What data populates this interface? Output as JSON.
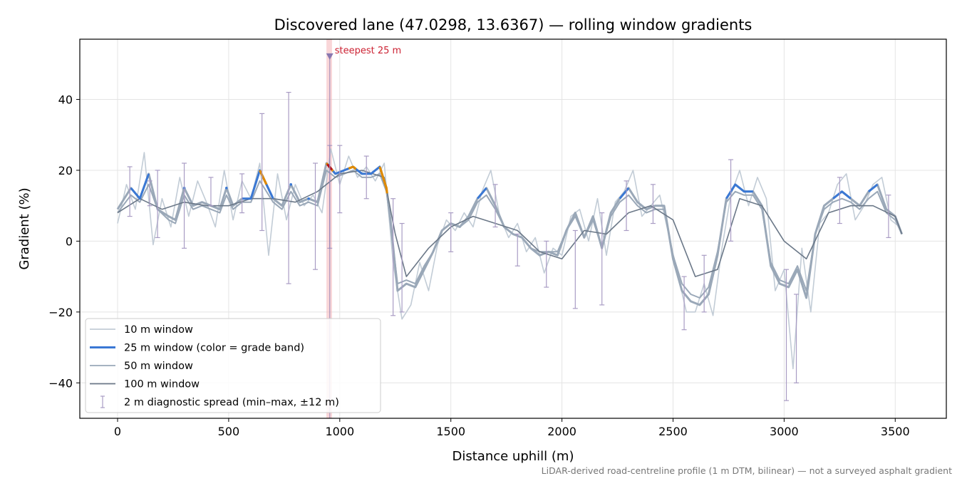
{
  "chart_data": {
    "type": "line",
    "title": "Discovered lane (47.0298, 13.6367) — rolling window gradients",
    "xlabel": "Distance uphill (m)",
    "ylabel": "Gradient (%)",
    "xlim": [
      -170,
      3730
    ],
    "ylim": [
      -50,
      57
    ],
    "x_ticks": [
      0,
      500,
      1000,
      1500,
      2000,
      2500,
      3000,
      3500
    ],
    "x_tick_labels": [
      "0",
      "500",
      "1000",
      "1500",
      "2000",
      "2500",
      "3000",
      "3500"
    ],
    "y_ticks": [
      -40,
      -20,
      0,
      20,
      40
    ],
    "y_tick_labels": [
      "−40",
      "−20",
      "0",
      "20",
      "40"
    ],
    "grid": true,
    "legend_position": "lower-left",
    "colors": {
      "w10": "#c2ccd6",
      "w25": "#3a78d4",
      "w50": "#9aa8b8",
      "w100": "#6b7888",
      "errorbar": "#a99cc4",
      "band_orange": "#e08a00",
      "band_red": "#b5121b",
      "highlight": "#f4b4b8",
      "annotation": "#cc2233",
      "marker": "#8878b0"
    },
    "steepest": {
      "x": 955,
      "span": [
        940,
        965
      ],
      "label": "steepest 25 m",
      "marker_y": 52
    },
    "orange_segments": [
      [
        640,
        670
      ],
      [
        940,
        970
      ],
      [
        1040,
        1075
      ],
      [
        1180,
        1215
      ]
    ],
    "red_segment": [
      944,
      966
    ],
    "blue_threshold": 12,
    "footnote": "LiDAR-derived road-centreline profile (1 m DTM, bilinear) — not a surveyed asphalt gradient",
    "legend": [
      {
        "key": "w10",
        "label": "10 m window"
      },
      {
        "key": "w25",
        "label": "25 m window (color = grade band)"
      },
      {
        "key": "w50",
        "label": "50 m window"
      },
      {
        "key": "w100",
        "label": "100 m window"
      },
      {
        "key": "err",
        "label": "2 m diagnostic spread (min–max, ±12 m)"
      }
    ],
    "series": [
      {
        "name": "25 m window",
        "x": [
          0,
          60,
          100,
          140,
          180,
          230,
          260,
          300,
          340,
          380,
          420,
          460,
          490,
          520,
          560,
          600,
          640,
          700,
          740,
          780,
          820,
          860,
          900,
          940,
          980,
          1020,
          1060,
          1100,
          1140,
          1180,
          1210,
          1230,
          1260,
          1300,
          1340,
          1380,
          1420,
          1460,
          1500,
          1540,
          1580,
          1620,
          1660,
          1700,
          1740,
          1780,
          1820,
          1860,
          1900,
          1940,
          1980,
          2020,
          2060,
          2100,
          2140,
          2180,
          2220,
          2260,
          2300,
          2340,
          2380,
          2420,
          2460,
          2500,
          2540,
          2580,
          2620,
          2660,
          2700,
          2740,
          2780,
          2820,
          2860,
          2900,
          2940,
          2980,
          3020,
          3060,
          3100,
          3140,
          3180,
          3220,
          3260,
          3300,
          3340,
          3380,
          3420,
          3460,
          3500,
          3530
        ],
        "y": [
          9,
          15,
          12,
          19,
          9,
          7,
          6,
          15,
          10,
          11,
          10,
          9,
          15,
          10,
          12,
          12,
          20,
          12,
          10,
          16,
          11,
          12,
          11,
          22,
          19,
          20,
          21,
          19,
          19,
          21,
          15,
          5,
          -14,
          -12,
          -13,
          -8,
          -3,
          3,
          5,
          4,
          7,
          12,
          15,
          10,
          4,
          2,
          1,
          -2,
          -4,
          -3,
          -4,
          3,
          8,
          1,
          7,
          -2,
          8,
          12,
          15,
          11,
          9,
          10,
          10,
          -5,
          -14,
          -17,
          -18,
          -15,
          -4,
          12,
          16,
          14,
          14,
          10,
          -7,
          -12,
          -13,
          -8,
          -16,
          2,
          10,
          12,
          14,
          12,
          10,
          14,
          16,
          9,
          7,
          2
        ]
      },
      {
        "name": "50 m window",
        "x": [
          0,
          60,
          100,
          140,
          180,
          230,
          260,
          300,
          340,
          380,
          420,
          460,
          490,
          520,
          560,
          600,
          640,
          700,
          740,
          780,
          820,
          860,
          900,
          940,
          980,
          1020,
          1060,
          1100,
          1140,
          1180,
          1210,
          1230,
          1260,
          1300,
          1340,
          1380,
          1420,
          1460,
          1500,
          1540,
          1580,
          1620,
          1660,
          1700,
          1740,
          1780,
          1820,
          1860,
          1900,
          1940,
          1980,
          2020,
          2060,
          2100,
          2140,
          2180,
          2220,
          2260,
          2300,
          2340,
          2380,
          2420,
          2460,
          2500,
          2540,
          2580,
          2620,
          2660,
          2700,
          2740,
          2780,
          2820,
          2860,
          2900,
          2940,
          2980,
          3020,
          3060,
          3100,
          3140,
          3180,
          3220,
          3260,
          3300,
          3340,
          3380,
          3420,
          3460,
          3500,
          3530
        ],
        "y": [
          8,
          13,
          11,
          16,
          9,
          6,
          5,
          13,
          9,
          10,
          9,
          8,
          13,
          9,
          11,
          11,
          17,
          11,
          9,
          14,
          10,
          11,
          10,
          20,
          18,
          19,
          20,
          18,
          18,
          19,
          14,
          4,
          -12,
          -11,
          -12,
          -7,
          -3,
          3,
          5,
          4,
          6,
          11,
          13,
          9,
          4,
          2,
          1,
          -2,
          -3,
          -3,
          -3,
          3,
          7,
          1,
          6,
          -2,
          7,
          11,
          13,
          10,
          8,
          9,
          9,
          -4,
          -12,
          -15,
          -16,
          -13,
          -3,
          11,
          14,
          13,
          13,
          9,
          -6,
          -11,
          -12,
          -7,
          -14,
          2,
          9,
          11,
          12,
          11,
          9,
          12,
          14,
          8,
          6,
          2
        ]
      },
      {
        "name": "100 m window",
        "x": [
          0,
          100,
          200,
          300,
          400,
          500,
          600,
          700,
          800,
          900,
          1000,
          1100,
          1200,
          1250,
          1300,
          1400,
          1500,
          1600,
          1700,
          1800,
          1900,
          2000,
          2100,
          2200,
          2300,
          2400,
          2500,
          2600,
          2700,
          2800,
          2900,
          3000,
          3100,
          3200,
          3300,
          3400,
          3500,
          3530
        ],
        "y": [
          8,
          12,
          9,
          11,
          10,
          10,
          12,
          12,
          11,
          14,
          19,
          20,
          18,
          2,
          -10,
          -2,
          4,
          7,
          5,
          3,
          -3,
          -5,
          3,
          2,
          8,
          10,
          6,
          -10,
          -8,
          12,
          10,
          0,
          -5,
          8,
          10,
          10,
          7,
          2
        ]
      },
      {
        "name": "10 m window",
        "x": [
          0,
          40,
          80,
          120,
          160,
          200,
          240,
          280,
          320,
          360,
          400,
          440,
          480,
          520,
          560,
          600,
          640,
          680,
          720,
          760,
          800,
          840,
          880,
          920,
          960,
          1000,
          1040,
          1080,
          1120,
          1160,
          1200,
          1240,
          1280,
          1320,
          1360,
          1400,
          1440,
          1480,
          1520,
          1560,
          1600,
          1640,
          1680,
          1720,
          1760,
          1800,
          1840,
          1880,
          1920,
          1960,
          2000,
          2040,
          2080,
          2120,
          2160,
          2200,
          2240,
          2280,
          2320,
          2360,
          2400,
          2440,
          2480,
          2520,
          2560,
          2600,
          2640,
          2680,
          2720,
          2760,
          2800,
          2840,
          2880,
          2920,
          2960,
          3000,
          3040,
          3080,
          3120,
          3160,
          3200,
          3240,
          3280,
          3320,
          3360,
          3400,
          3440,
          3480,
          3520
        ],
        "y": [
          5,
          16,
          9,
          25,
          -1,
          12,
          4,
          18,
          7,
          17,
          11,
          4,
          20,
          6,
          17,
          12,
          22,
          -4,
          19,
          6,
          16,
          10,
          13,
          8,
          26,
          16,
          24,
          18,
          21,
          17,
          22,
          -6,
          -22,
          -18,
          -6,
          -14,
          -1,
          6,
          3,
          8,
          4,
          14,
          20,
          7,
          1,
          5,
          -3,
          1,
          -9,
          -2,
          -4,
          7,
          9,
          0,
          12,
          -4,
          11,
          14,
          20,
          7,
          10,
          13,
          2,
          -9,
          -20,
          -20,
          -12,
          -21,
          -2,
          13,
          20,
          10,
          18,
          12,
          -14,
          -8,
          -36,
          -2,
          -20,
          5,
          8,
          16,
          19,
          6,
          10,
          16,
          18,
          6,
          4
        ]
      }
    ],
    "error_bars": [
      {
        "x": 55,
        "lo": 7,
        "hi": 21
      },
      {
        "x": 145,
        "lo": 10,
        "hi": 17
      },
      {
        "x": 180,
        "lo": 1,
        "hi": 20
      },
      {
        "x": 300,
        "lo": -2,
        "hi": 22
      },
      {
        "x": 420,
        "lo": 10,
        "hi": 18
      },
      {
        "x": 560,
        "lo": 8,
        "hi": 19
      },
      {
        "x": 650,
        "lo": 3,
        "hi": 36
      },
      {
        "x": 770,
        "lo": -12,
        "hi": 42
      },
      {
        "x": 890,
        "lo": -8,
        "hi": 22
      },
      {
        "x": 955,
        "lo": -2,
        "hi": 27
      },
      {
        "x": 1000,
        "lo": 8,
        "hi": 27
      },
      {
        "x": 1120,
        "lo": 12,
        "hi": 24
      },
      {
        "x": 1240,
        "lo": -21,
        "hi": 12
      },
      {
        "x": 1280,
        "lo": -20,
        "hi": 5
      },
      {
        "x": 1500,
        "lo": -3,
        "hi": 8
      },
      {
        "x": 1700,
        "lo": 4,
        "hi": 16
      },
      {
        "x": 1800,
        "lo": -7,
        "hi": 2
      },
      {
        "x": 1930,
        "lo": -13,
        "hi": 0
      },
      {
        "x": 2060,
        "lo": -19,
        "hi": 3
      },
      {
        "x": 2180,
        "lo": -18,
        "hi": 8
      },
      {
        "x": 2290,
        "lo": 3,
        "hi": 17
      },
      {
        "x": 2410,
        "lo": 5,
        "hi": 16
      },
      {
        "x": 2550,
        "lo": -25,
        "hi": -10
      },
      {
        "x": 2640,
        "lo": -20,
        "hi": -4
      },
      {
        "x": 2760,
        "lo": 0,
        "hi": 23
      },
      {
        "x": 3010,
        "lo": -45,
        "hi": -8
      },
      {
        "x": 3055,
        "lo": -40,
        "hi": -15
      },
      {
        "x": 3250,
        "lo": 5,
        "hi": 18
      },
      {
        "x": 3470,
        "lo": 1,
        "hi": 13
      }
    ]
  }
}
